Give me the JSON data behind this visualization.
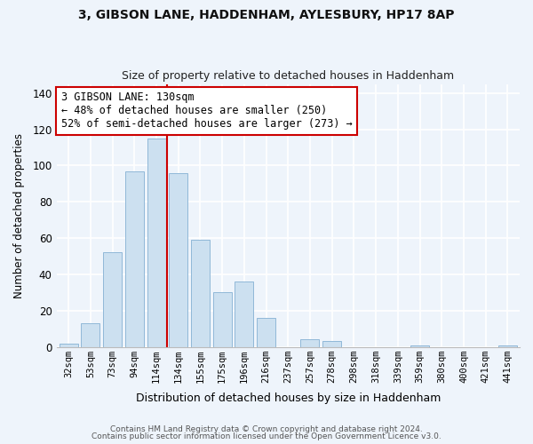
{
  "title1": "3, GIBSON LANE, HADDENHAM, AYLESBURY, HP17 8AP",
  "title2": "Size of property relative to detached houses in Haddenham",
  "xlabel": "Distribution of detached houses by size in Haddenham",
  "ylabel": "Number of detached properties",
  "bar_color": "#cce0f0",
  "bar_edge_color": "#90b8d8",
  "categories": [
    "32sqm",
    "53sqm",
    "73sqm",
    "94sqm",
    "114sqm",
    "134sqm",
    "155sqm",
    "175sqm",
    "196sqm",
    "216sqm",
    "237sqm",
    "257sqm",
    "278sqm",
    "298sqm",
    "318sqm",
    "339sqm",
    "359sqm",
    "380sqm",
    "400sqm",
    "421sqm",
    "441sqm"
  ],
  "values": [
    2,
    13,
    52,
    97,
    115,
    96,
    59,
    30,
    36,
    16,
    0,
    4,
    3,
    0,
    0,
    0,
    1,
    0,
    0,
    0,
    1
  ],
  "vline_color": "#cc0000",
  "ylim": [
    0,
    145
  ],
  "yticks": [
    0,
    20,
    40,
    60,
    80,
    100,
    120,
    140
  ],
  "annotation_line1": "3 GIBSON LANE: 130sqm",
  "annotation_line2": "← 48% of detached houses are smaller (250)",
  "annotation_line3": "52% of semi-detached houses are larger (273) →",
  "annotation_box_color": "#ffffff",
  "annotation_box_edge_color": "#cc0000",
  "bg_color": "#eef4fb",
  "grid_color": "#ffffff",
  "footer1": "Contains HM Land Registry data © Crown copyright and database right 2024.",
  "footer2": "Contains public sector information licensed under the Open Government Licence v3.0."
}
